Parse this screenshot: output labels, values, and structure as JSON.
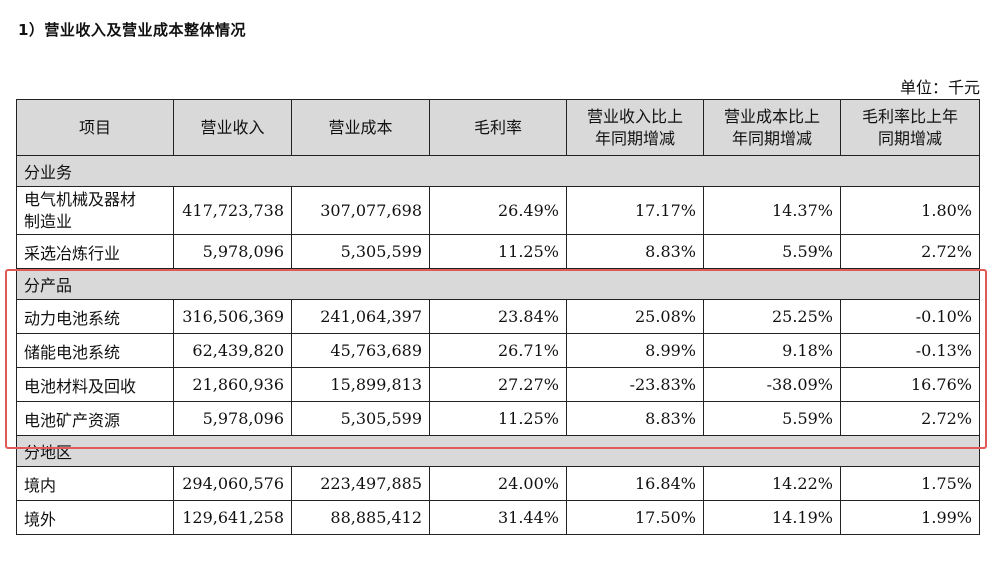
{
  "title": "1）营业收入及营业成本整体情况",
  "unit": "单位：千元",
  "headers": [
    "项目",
    "营业收入",
    "营业成本",
    "毛利率",
    "营业收入比上年同期增减",
    "营业成本比上年同期增减",
    "毛利率比上年同期增减"
  ],
  "header_lines": {
    "col4": [
      "营业收入比上",
      "年同期增减"
    ],
    "col5": [
      "营业成本比上",
      "年同期增减"
    ],
    "col6": [
      "毛利率比上年",
      "同期增减"
    ]
  },
  "sections": [
    {
      "label": "分业务",
      "rows": [
        {
          "name": "电气机械及器材制造业",
          "name_lines": [
            "电气机械及器材",
            "制造业"
          ],
          "revenue": "417,723,738",
          "cost": "307,077,698",
          "margin": "26.49%",
          "rev_change": "17.17%",
          "cost_change": "14.37%",
          "margin_change": "1.80%"
        },
        {
          "name": "采选冶炼行业",
          "revenue": "5,978,096",
          "cost": "5,305,599",
          "margin": "11.25%",
          "rev_change": "8.83%",
          "cost_change": "5.59%",
          "margin_change": "2.72%"
        }
      ]
    },
    {
      "label": "分产品",
      "rows": [
        {
          "name": "动力电池系统",
          "revenue": "316,506,369",
          "cost": "241,064,397",
          "margin": "23.84%",
          "rev_change": "25.08%",
          "cost_change": "25.25%",
          "margin_change": "-0.10%"
        },
        {
          "name": "储能电池系统",
          "revenue": "62,439,820",
          "cost": "45,763,689",
          "margin": "26.71%",
          "rev_change": "8.99%",
          "cost_change": "9.18%",
          "margin_change": "-0.13%"
        },
        {
          "name": "电池材料及回收",
          "revenue": "21,860,936",
          "cost": "15,899,813",
          "margin": "27.27%",
          "rev_change": "-23.83%",
          "cost_change": "-38.09%",
          "margin_change": "16.76%"
        },
        {
          "name": "电池矿产资源",
          "revenue": "5,978,096",
          "cost": "5,305,599",
          "margin": "11.25%",
          "rev_change": "8.83%",
          "cost_change": "5.59%",
          "margin_change": "2.72%"
        }
      ]
    },
    {
      "label": "分地区",
      "rows": [
        {
          "name": "境内",
          "revenue": "294,060,576",
          "cost": "223,497,885",
          "margin": "24.00%",
          "rev_change": "16.84%",
          "cost_change": "14.22%",
          "margin_change": "1.75%"
        },
        {
          "name": "境外",
          "revenue": "129,641,258",
          "cost": "88,885,412",
          "margin": "31.44%",
          "rev_change": "17.50%",
          "cost_change": "14.19%",
          "margin_change": "1.99%"
        }
      ]
    }
  ],
  "colors": {
    "header_bg": "#d9d9d9",
    "highlight_border": "#e05a5a"
  }
}
